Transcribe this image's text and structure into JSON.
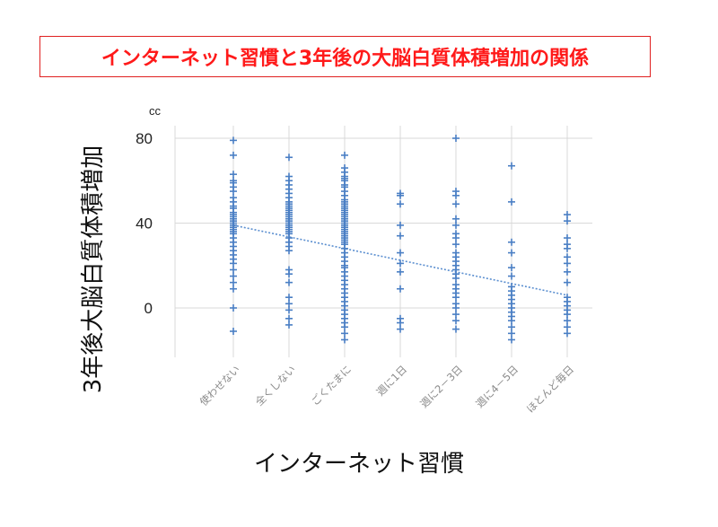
{
  "chart_data": {
    "type": "scatter",
    "title": "インターネット習慣と3年後の大脳白質体積増加の関係",
    "xlabel": "インターネット習慣",
    "ylabel": "3年後大脳白質体積増加",
    "yunit": "cc",
    "ylim": [
      -30,
      80
    ],
    "yticks": [
      0,
      40,
      80
    ],
    "grid": true,
    "categories": [
      "使わせない",
      "全くしない",
      "ごくたまに",
      "週に1日",
      "週に2－3日",
      "週に4－5日",
      "ほとんど毎日"
    ],
    "series": [
      {
        "values": [
          [
            79,
            72,
            63,
            60,
            59,
            57,
            55,
            52,
            50,
            48,
            47,
            45,
            44,
            43,
            42,
            41,
            40,
            39,
            38,
            37,
            36,
            35,
            33,
            31,
            29,
            27,
            25,
            23,
            21,
            18,
            15,
            12,
            9,
            0,
            -11
          ],
          [
            71,
            62,
            60,
            58,
            56,
            54,
            52,
            50,
            49,
            48,
            47,
            46,
            45,
            44,
            43,
            42,
            41,
            40,
            39,
            38,
            37,
            36,
            35,
            33,
            31,
            29,
            27,
            18,
            16,
            12,
            5,
            2,
            -1,
            -5,
            -8
          ],
          [
            72,
            66,
            64,
            62,
            61,
            60,
            58,
            57,
            55,
            53,
            51,
            50,
            49,
            48,
            47,
            46,
            45,
            44,
            43,
            42,
            41,
            40,
            39,
            38,
            37,
            36,
            35,
            34,
            33,
            32,
            31,
            30,
            28,
            26,
            24,
            22,
            20,
            19,
            17,
            15,
            13,
            11,
            9,
            7,
            5,
            3,
            1,
            -1,
            -3,
            -5,
            -7,
            -9,
            -12,
            -15
          ],
          [
            54,
            53,
            49,
            39,
            34,
            26,
            21,
            17,
            9,
            -5,
            -7,
            -10
          ],
          [
            80,
            55,
            53,
            49,
            42,
            39,
            35,
            33,
            30,
            26,
            24,
            22,
            20,
            18,
            16,
            14,
            11,
            9,
            7,
            5,
            2,
            0,
            -3,
            -6,
            -10
          ],
          [
            67,
            50,
            31,
            26,
            19,
            15,
            10,
            8,
            6,
            4,
            2,
            0,
            -2,
            -4,
            -6,
            -9,
            -12,
            -15
          ],
          [
            44,
            41,
            33,
            30,
            28,
            24,
            21,
            17,
            12,
            5,
            3,
            1,
            -1,
            -3,
            -6,
            -9,
            -12
          ]
        ]
      }
    ],
    "trendline": {
      "start": 39,
      "end": 6
    },
    "colors": {
      "point": "#4a7fc4",
      "trend": "#5b8fd0",
      "title": "#ff1a1a",
      "grid": "#d9d9d9"
    }
  }
}
